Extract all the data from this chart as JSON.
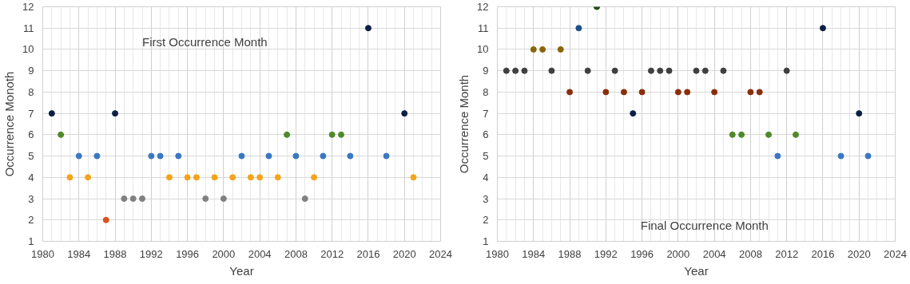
{
  "chart_data": [
    {
      "type": "scatter",
      "title": "First Occurrence Month",
      "xlabel": "Year",
      "ylabel": "Occurrence Monoth",
      "x": [
        1981,
        1982,
        1983,
        1984,
        1985,
        1986,
        1987,
        1988,
        1989,
        1990,
        1991,
        1992,
        1993,
        1994,
        1995,
        1996,
        1997,
        1998,
        1999,
        2000,
        2001,
        2002,
        2003,
        2004,
        2005,
        2006,
        2007,
        2008,
        2009,
        2010,
        2011,
        2012,
        2013,
        2014,
        2016,
        2018,
        2020,
        2021
      ],
      "values": [
        7,
        6,
        4,
        5,
        4,
        5,
        2,
        7,
        3,
        3,
        3,
        5,
        5,
        4,
        5,
        4,
        4,
        3,
        4,
        3,
        4,
        5,
        4,
        4,
        5,
        4,
        6,
        5,
        3,
        4,
        5,
        6,
        6,
        5,
        11,
        5,
        7,
        4
      ],
      "colors": [
        "#0d1f45",
        "#4f8a2a",
        "#f5a31a",
        "#3a78c2",
        "#f5a31a",
        "#3a78c2",
        "#d9531e",
        "#0d1f45",
        "#808080",
        "#808080",
        "#808080",
        "#3a78c2",
        "#3a78c2",
        "#f5a31a",
        "#3a78c2",
        "#f5a31a",
        "#f5a31a",
        "#808080",
        "#f5a31a",
        "#808080",
        "#f5a31a",
        "#3a78c2",
        "#f5a31a",
        "#f5a31a",
        "#3a78c2",
        "#f5a31a",
        "#4f8a2a",
        "#3a78c2",
        "#808080",
        "#f5a31a",
        "#3a78c2",
        "#4f8a2a",
        "#4f8a2a",
        "#3a78c2",
        "#0d1f45",
        "#3a78c2",
        "#0d1f45",
        "#f5a31a"
      ],
      "xlim": [
        1980,
        2024
      ],
      "xticks": [
        1980,
        1984,
        1988,
        1992,
        1996,
        2000,
        2004,
        2008,
        2012,
        2016,
        2020,
        2024
      ],
      "ylim": [
        1,
        12
      ],
      "yticks": [
        1,
        2,
        3,
        4,
        5,
        6,
        7,
        8,
        9,
        10,
        11,
        12
      ],
      "grid": true,
      "marker": "circle"
    },
    {
      "type": "scatter",
      "title": "Final Occurrence Month",
      "xlabel": "Year",
      "ylabel": "Occurrence Month",
      "x": [
        1981,
        1982,
        1983,
        1984,
        1985,
        1986,
        1987,
        1988,
        1989,
        1990,
        1991,
        1992,
        1993,
        1994,
        1995,
        1996,
        1997,
        1998,
        1999,
        2000,
        2001,
        2002,
        2003,
        2004,
        2005,
        2006,
        2007,
        2008,
        2009,
        2010,
        2011,
        2012,
        2013,
        2016,
        2018,
        2020,
        2021
      ],
      "values": [
        9,
        9,
        9,
        10,
        10,
        9,
        10,
        8,
        11,
        9,
        12,
        8,
        9,
        8,
        7,
        8,
        9,
        9,
        9,
        8,
        8,
        9,
        9,
        8,
        9,
        6,
        6,
        8,
        8,
        6,
        5,
        9,
        6,
        11,
        5,
        7,
        5
      ],
      "colors": [
        "#404040",
        "#404040",
        "#404040",
        "#8a6508",
        "#8a6508",
        "#404040",
        "#8a6508",
        "#8b2e0a",
        "#1f4e8c",
        "#404040",
        "#1e4a12",
        "#8b2e0a",
        "#404040",
        "#8b2e0a",
        "#0d1f45",
        "#8b2e0a",
        "#404040",
        "#404040",
        "#404040",
        "#8b2e0a",
        "#8b2e0a",
        "#404040",
        "#404040",
        "#8b2e0a",
        "#404040",
        "#4f8a2a",
        "#4f8a2a",
        "#8b2e0a",
        "#8b2e0a",
        "#4f8a2a",
        "#3a78c2",
        "#404040",
        "#4f8a2a",
        "#0d1f45",
        "#3a78c2",
        "#0d1f45",
        "#3a78c2"
      ],
      "xlim": [
        1980,
        2024
      ],
      "xticks": [
        1980,
        1984,
        1988,
        1992,
        1996,
        2000,
        2004,
        2008,
        2012,
        2016,
        2020,
        2024
      ],
      "ylim": [
        1,
        12
      ],
      "yticks": [
        1,
        2,
        3,
        4,
        5,
        6,
        7,
        8,
        9,
        10,
        11,
        12
      ],
      "grid": true,
      "marker": "circle"
    }
  ]
}
